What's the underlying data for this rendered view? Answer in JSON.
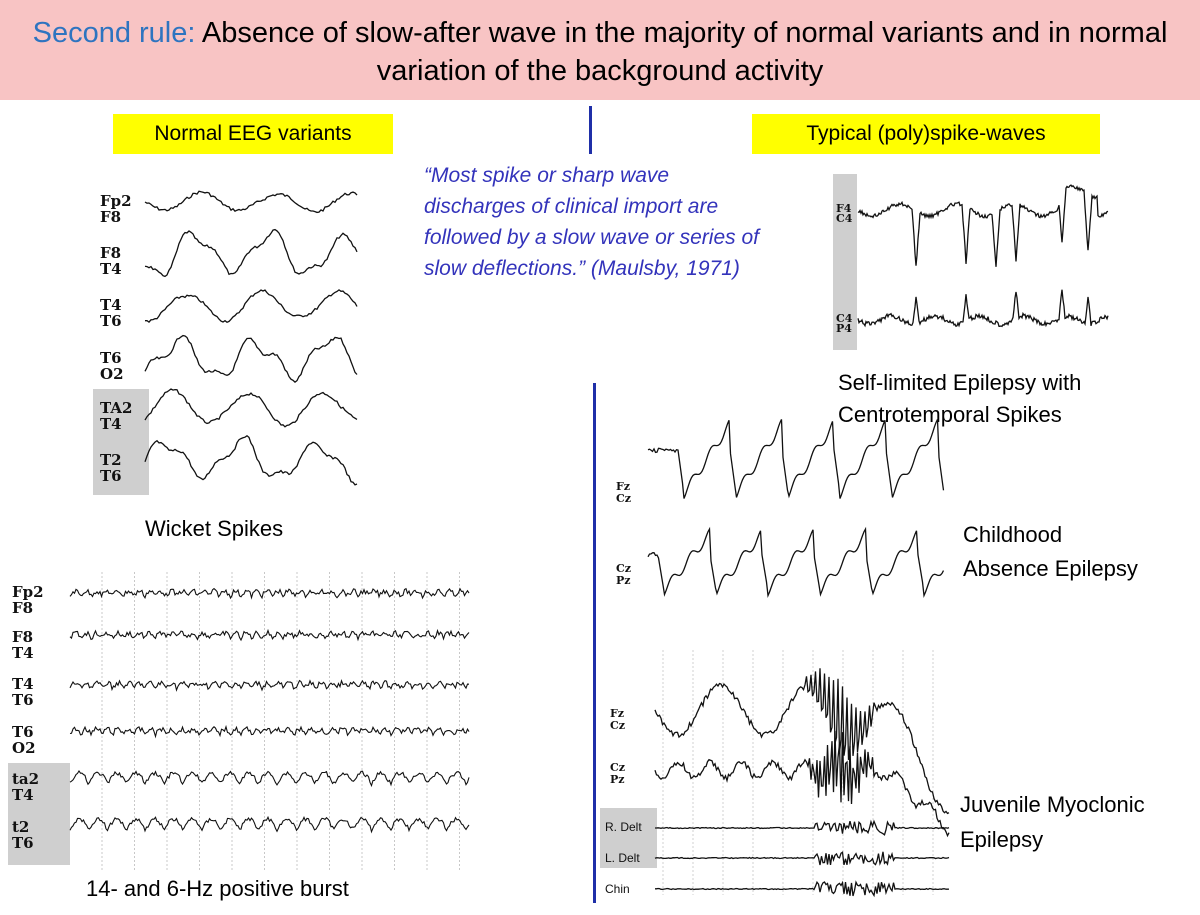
{
  "header": {
    "rule_label": "Second rule:",
    "rule_text": " Absence of slow-after wave in the majority of normal variants and in normal variation of the background activity"
  },
  "left": {
    "heading": "Normal EEG variants",
    "wicket": {
      "channels": [
        [
          "Fp2",
          "F8"
        ],
        [
          "F8",
          "T4"
        ],
        [
          "T4",
          "T6"
        ],
        [
          "T6",
          "O2"
        ],
        [
          "TA2",
          "T4"
        ],
        [
          "T2",
          "T6"
        ]
      ],
      "caption": "Wicket Spikes"
    },
    "burst": {
      "channels": [
        [
          "Fp2",
          "F8"
        ],
        [
          "F8",
          "T4"
        ],
        [
          "T4",
          "T6"
        ],
        [
          "T6",
          "O2"
        ],
        [
          "ta2",
          "T4"
        ],
        [
          "t2",
          "T6"
        ]
      ],
      "caption": "14- and 6-Hz positive burst"
    }
  },
  "center": {
    "quote": "“Most spike or sharp wave discharges of clinical import are followed by a slow wave or series of slow deflections.” (Maulsby, 1971)"
  },
  "right": {
    "heading": "Typical (poly)spike-waves",
    "bects": {
      "channels": [
        [
          "F4",
          "C4"
        ],
        [
          "C4",
          "P4"
        ]
      ],
      "caption_line1": "Self-limited Epilepsy with",
      "caption_line2": "Centrotemporal Spikes"
    },
    "cae": {
      "channels": [
        [
          "Fz",
          "Cz"
        ],
        [
          "Cz",
          "Pz"
        ]
      ],
      "caption_line1": "Childhood",
      "caption_line2": "Absence Epilepsy"
    },
    "jme": {
      "channels": [
        [
          "Fz",
          "Cz"
        ],
        [
          "Cz",
          "Pz"
        ]
      ],
      "emg": [
        "R. Delt",
        "L. Delt",
        "Chin"
      ],
      "caption_line1": "Juvenile Myoclonic",
      "caption_line2": "Epilepsy"
    }
  },
  "colors": {
    "banner": "#f8c4c4",
    "rule_label": "#2e74c0",
    "highlight": "#ffff00",
    "quote": "#3333bb",
    "divider": "#1f2fa8",
    "channel_box": "#cfcfcf"
  }
}
